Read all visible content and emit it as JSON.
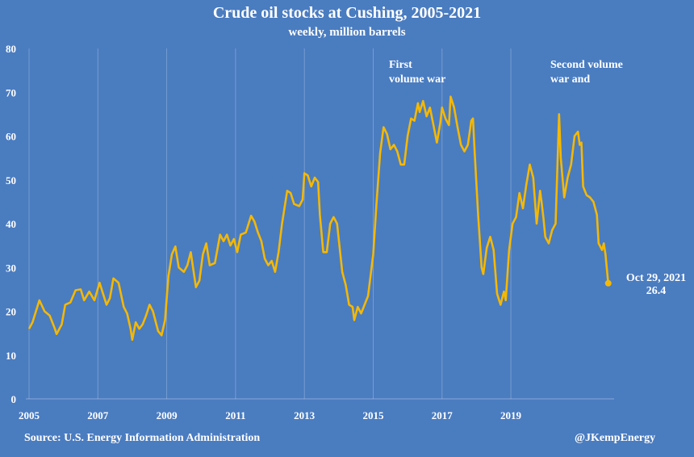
{
  "chart_data": {
    "type": "line",
    "title": "Crude oil stocks at Cushing, 2005-2021",
    "subtitle": "weekly, million barrels",
    "source": "Source: U.S. Energy Information Administration",
    "credit": "@JKempEnergy",
    "annotations": [
      "First",
      "volume war",
      "Second volume",
      "war and",
      "Oct 29, 2021"
    ],
    "color": "#f5b800",
    "background": "#4a7cc0",
    "grid": true,
    "xlim": [
      2005,
      2022
    ],
    "xticks": [
      2005,
      2007,
      2009,
      2011,
      2013,
      2015,
      2017,
      2019
    ],
    "ylim": [
      0,
      80
    ],
    "yticks": [
      0,
      10,
      20,
      30,
      40,
      50,
      60,
      70,
      80
    ],
    "x": [
      2005.0,
      2005.1,
      2005.3,
      2005.45,
      2005.6,
      2005.75,
      2005.8,
      2005.95,
      2006.05,
      2006.2,
      2006.35,
      2006.5,
      2006.6,
      2006.75,
      2006.9,
      2007.05,
      2007.15,
      2007.25,
      2007.35,
      2007.45,
      2007.6,
      2007.75,
      2007.85,
      2007.95,
      2008.0,
      2008.1,
      2008.2,
      2008.3,
      2008.4,
      2008.5,
      2008.6,
      2008.75,
      2008.85,
      2008.95,
      2009.05,
      2009.15,
      2009.25,
      2009.35,
      2009.5,
      2009.6,
      2009.7,
      2009.85,
      2009.95,
      2010.05,
      2010.15,
      2010.25,
      2010.4,
      2010.55,
      2010.65,
      2010.75,
      2010.85,
      2010.95,
      2011.05,
      2011.15,
      2011.3,
      2011.45,
      2011.55,
      2011.65,
      2011.75,
      2011.85,
      2011.95,
      2012.05,
      2012.15,
      2012.25,
      2012.35,
      2012.5,
      2012.6,
      2012.7,
      2012.85,
      2012.95,
      2013.0,
      2013.1,
      2013.2,
      2013.3,
      2013.4,
      2013.45,
      2013.55,
      2013.65,
      2013.75,
      2013.85,
      2013.95,
      2014.1,
      2014.2,
      2014.3,
      2014.4,
      2014.45,
      2014.55,
      2014.65,
      2014.75,
      2014.85,
      2015.0,
      2015.1,
      2015.2,
      2015.3,
      2015.4,
      2015.5,
      2015.6,
      2015.7,
      2015.8,
      2015.9,
      2016.0,
      2016.1,
      2016.2,
      2016.3,
      2016.35,
      2016.45,
      2016.55,
      2016.65,
      2016.75,
      2016.85,
      2016.95,
      2017.0,
      2017.1,
      2017.2,
      2017.25,
      2017.35,
      2017.45,
      2017.55,
      2017.65,
      2017.75,
      2017.85,
      2017.9,
      2017.95,
      2018.05,
      2018.15,
      2018.2,
      2018.3,
      2018.4,
      2018.5,
      2018.6,
      2018.7,
      2018.8,
      2018.85,
      2018.95,
      2019.05,
      2019.15,
      2019.25,
      2019.35,
      2019.45,
      2019.55,
      2019.65,
      2019.75,
      2019.85,
      2019.9,
      2019.95,
      2020.0,
      2020.1,
      2020.2,
      2020.3,
      2020.4,
      2020.45,
      2020.55,
      2020.65,
      2020.75,
      2020.85,
      2020.95,
      2021.0,
      2021.05,
      2021.1,
      2021.2,
      2021.3,
      2021.4,
      2021.5,
      2021.55,
      2021.65,
      2021.7,
      2021.75,
      2021.83
    ],
    "values": [
      16,
      17.5,
      22.5,
      20,
      19,
      16,
      14.8,
      17,
      21.5,
      22,
      24.8,
      25,
      22.5,
      24.5,
      22.5,
      26.5,
      24,
      21.5,
      23,
      27.5,
      26.5,
      21,
      19.5,
      16,
      13.5,
      17.5,
      16,
      17,
      19,
      21.5,
      20,
      15.5,
      14.5,
      18,
      28,
      33,
      34.8,
      30,
      29,
      30.5,
      33.5,
      25.5,
      27,
      33,
      35.5,
      30.5,
      31,
      37.5,
      36,
      37.5,
      35,
      36.5,
      33.5,
      37.5,
      38,
      41.8,
      40.5,
      38,
      36,
      32,
      30.5,
      31.5,
      29,
      33.5,
      40,
      47.5,
      47,
      44.5,
      44,
      45.5,
      51.5,
      51,
      48.5,
      50.5,
      49.5,
      42,
      33.5,
      33.5,
      40,
      41.5,
      40,
      29,
      26,
      21.5,
      21,
      18,
      21,
      19.5,
      21.5,
      23.5,
      33,
      45,
      56,
      62,
      60.5,
      57,
      58,
      56.5,
      53.5,
      53.5,
      60,
      64,
      63.5,
      67.5,
      65.5,
      68,
      64.5,
      66.5,
      62.5,
      58.5,
      63,
      66.5,
      64,
      62.5,
      69,
      66.5,
      62,
      58,
      56.5,
      58,
      63.5,
      64,
      56,
      42,
      30,
      28.5,
      34.5,
      37,
      34,
      24,
      21.5,
      24.5,
      22.5,
      34,
      40,
      41.5,
      47,
      43.5,
      49,
      53.5,
      50.5,
      40,
      47.5,
      44.5,
      41,
      37,
      35.5,
      38.5,
      40,
      65,
      55,
      46,
      50.5,
      53.5,
      60,
      61,
      58,
      58.5,
      48.5,
      46.5,
      46,
      45,
      42,
      35.5,
      34,
      35.5,
      33,
      26.4
    ]
  }
}
